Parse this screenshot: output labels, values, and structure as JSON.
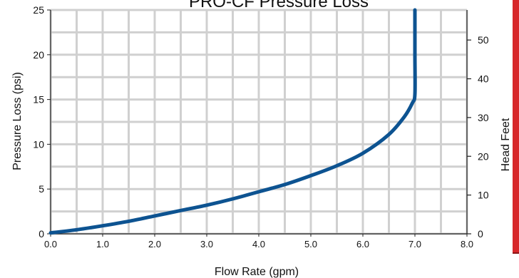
{
  "chart_data": {
    "type": "line",
    "title": "PRO-CF Pressure Loss",
    "xlabel": "Flow Rate (gpm)",
    "ylabel": "Pressure Loss (psi)",
    "y2label": "Head Feet",
    "xlim": [
      0,
      8
    ],
    "ylim": [
      0,
      25
    ],
    "y2lim": [
      0,
      57.75
    ],
    "x_ticks": [
      "0.0",
      "1.0",
      "2.0",
      "3.0",
      "4.0",
      "5.0",
      "6.0",
      "7.0",
      "8.0"
    ],
    "y_ticks": [
      "0",
      "5",
      "10",
      "15",
      "20",
      "25"
    ],
    "y2_ticks": [
      "0",
      "10",
      "20",
      "30",
      "40",
      "50"
    ],
    "grid": true,
    "series": [
      {
        "color": "#0d5391",
        "points": [
          [
            0.0,
            0.1
          ],
          [
            0.5,
            0.45
          ],
          [
            1.0,
            0.9
          ],
          [
            1.5,
            1.4
          ],
          [
            2.0,
            2.0
          ],
          [
            2.5,
            2.6
          ],
          [
            3.0,
            3.2
          ],
          [
            3.5,
            3.9
          ],
          [
            4.0,
            4.7
          ],
          [
            4.5,
            5.5
          ],
          [
            5.0,
            6.5
          ],
          [
            5.5,
            7.6
          ],
          [
            6.0,
            9.0
          ],
          [
            6.5,
            11.1
          ],
          [
            6.8,
            13.1
          ],
          [
            6.95,
            14.6
          ],
          [
            7.0,
            15.6
          ],
          [
            7.0,
            20.0
          ],
          [
            7.0,
            25.0
          ]
        ]
      }
    ]
  },
  "colors": {
    "accent_strip": "#d7272a",
    "grid": "#d0d0d0",
    "line": "#0d5391"
  }
}
